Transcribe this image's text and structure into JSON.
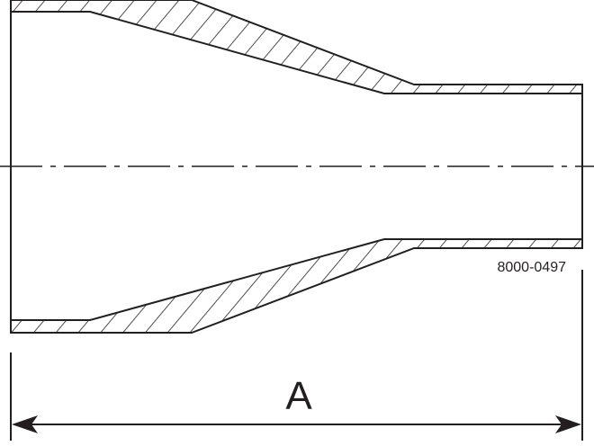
{
  "drawing": {
    "part_number": "8000-0497",
    "dimension_label": "A",
    "line_color": "#231f20",
    "background": "#ffffff"
  }
}
